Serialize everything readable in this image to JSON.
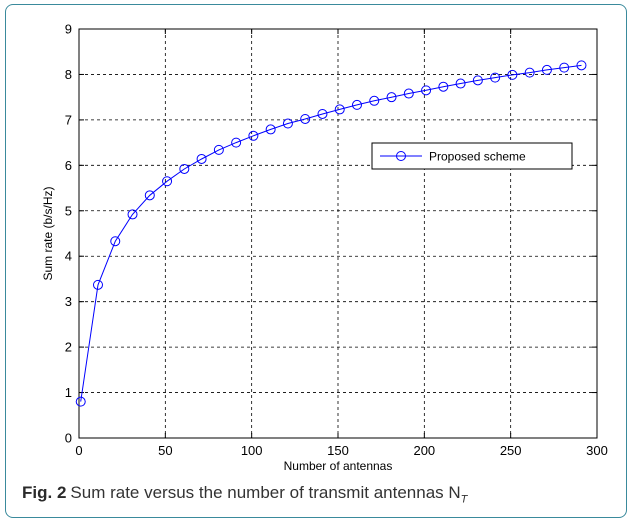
{
  "chart_data": {
    "type": "line",
    "x": [
      1,
      11,
      21,
      31,
      41,
      51,
      61,
      71,
      81,
      91,
      101,
      111,
      121,
      131,
      141,
      151,
      161,
      171,
      181,
      191,
      201,
      211,
      221,
      231,
      241,
      251,
      261,
      271,
      281,
      291
    ],
    "series": [
      {
        "name": "Proposed scheme",
        "values": [
          0.8,
          3.37,
          4.33,
          4.92,
          5.34,
          5.65,
          5.92,
          6.14,
          6.34,
          6.5,
          6.65,
          6.79,
          6.92,
          7.02,
          7.13,
          7.23,
          7.33,
          7.42,
          7.5,
          7.58,
          7.65,
          7.73,
          7.8,
          7.87,
          7.93,
          7.99,
          8.04,
          8.1,
          8.15,
          8.2
        ],
        "color": "#0000ff",
        "marker": "circle"
      }
    ],
    "xlabel": "Number of antennas",
    "ylabel": "Sum rate (b/s/Hz)",
    "xlim": [
      0,
      300
    ],
    "ylim": [
      0,
      9
    ],
    "xticks": [
      0,
      50,
      100,
      150,
      200,
      250,
      300
    ],
    "yticks": [
      0,
      1,
      2,
      3,
      4,
      5,
      6,
      7,
      8,
      9
    ],
    "grid": true,
    "legend_position": "middle-right"
  },
  "caption": {
    "label": "Fig. 2",
    "text": "Sum rate versus the number of transmit antennas N",
    "subscript": "T"
  }
}
